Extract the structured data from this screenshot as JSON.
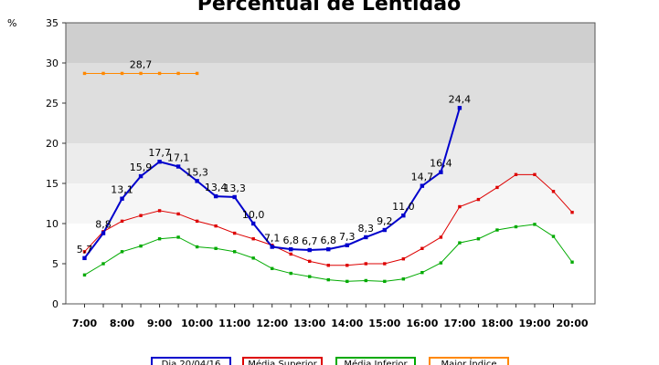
{
  "chart_data": {
    "type": "line",
    "title": "Percentual de Lentidão",
    "ylabel": "%",
    "xlabel": "",
    "ylim": [
      0,
      35
    ],
    "yticks": [
      0,
      5,
      10,
      15,
      20,
      25,
      30,
      35
    ],
    "x_tick_labels": [
      "7:00",
      "8:00",
      "9:00",
      "10:00",
      "11:00",
      "12:00",
      "13:00",
      "14:00",
      "15:00",
      "16:00",
      "17:00",
      "18:00",
      "19:00",
      "20:00"
    ],
    "bands": [
      {
        "from": 0,
        "to": 10,
        "color": "#ffffff"
      },
      {
        "from": 10,
        "to": 15,
        "color": "#f6f6f6"
      },
      {
        "from": 15,
        "to": 20,
        "color": "#ececec"
      },
      {
        "from": 20,
        "to": 30,
        "color": "#dedede"
      },
      {
        "from": 30,
        "to": 35,
        "color": "#cfcfcf"
      }
    ],
    "legend_position": "bottom",
    "series": [
      {
        "name": "Dia 20/04/16",
        "color": "#0000cc",
        "x": [
          7.0,
          7.5,
          8.0,
          8.5,
          9.0,
          9.5,
          10.0,
          10.5,
          11.0,
          11.5,
          12.0,
          12.5,
          13.0,
          13.5,
          14.0,
          14.5,
          15.0,
          15.5,
          16.0,
          16.5,
          17.0
        ],
        "values": [
          5.7,
          8.8,
          13.1,
          15.9,
          17.7,
          17.1,
          15.3,
          13.4,
          13.3,
          10.0,
          7.1,
          6.8,
          6.7,
          6.8,
          7.3,
          8.3,
          9.2,
          11.0,
          14.7,
          16.4,
          24.4
        ],
        "labels": [
          "5,7",
          "8,8",
          "13,1",
          "15,9",
          "17,7",
          "17,1",
          "15,3",
          "13,4",
          "13,3",
          "10,0",
          "7,1",
          "6,8",
          "6,7",
          "6,8",
          "7,3",
          "8,3",
          "9,2",
          "11,0",
          "14,7",
          "16,4",
          "24,4"
        ]
      },
      {
        "name": "Média Superior",
        "color": "#dd0000",
        "x": [
          7.0,
          7.5,
          8.0,
          8.5,
          9.0,
          9.5,
          10.0,
          10.5,
          11.0,
          11.5,
          12.0,
          12.5,
          13.0,
          13.5,
          14.0,
          14.5,
          15.0,
          15.5,
          16.0,
          16.5,
          17.0,
          17.5,
          18.0,
          18.5,
          19.0,
          19.5,
          20.0
        ],
        "values": [
          6.5,
          9.0,
          10.3,
          11.0,
          11.6,
          11.2,
          10.3,
          9.7,
          8.8,
          8.1,
          7.3,
          6.2,
          5.3,
          4.8,
          4.8,
          5.0,
          5.0,
          5.6,
          6.9,
          8.3,
          12.1,
          13.0,
          14.5,
          16.1,
          16.1,
          14.0,
          11.4
        ]
      },
      {
        "name": "Média Inferior",
        "color": "#00aa00",
        "x": [
          7.0,
          7.5,
          8.0,
          8.5,
          9.0,
          9.5,
          10.0,
          10.5,
          11.0,
          11.5,
          12.0,
          12.5,
          13.0,
          13.5,
          14.0,
          14.5,
          15.0,
          15.5,
          16.0,
          16.5,
          17.0,
          17.5,
          18.0,
          18.5,
          19.0,
          19.5,
          20.0
        ],
        "values": [
          3.6,
          5.0,
          6.5,
          7.2,
          8.1,
          8.3,
          7.1,
          6.9,
          6.5,
          5.7,
          4.4,
          3.8,
          3.4,
          3.0,
          2.8,
          2.9,
          2.8,
          3.1,
          3.9,
          5.1,
          7.6,
          8.1,
          9.2,
          9.6,
          9.9,
          8.4,
          5.2
        ]
      },
      {
        "name": "Maior Índice",
        "color": "#ff8800",
        "x": [
          7.0,
          7.5,
          8.0,
          8.5,
          9.0,
          9.5,
          10.0
        ],
        "values": [
          28.7,
          28.7,
          28.7,
          28.7,
          28.7,
          28.7,
          28.7
        ],
        "labels": [
          "",
          "",
          "",
          "28,7",
          "",
          "",
          ""
        ]
      }
    ]
  }
}
